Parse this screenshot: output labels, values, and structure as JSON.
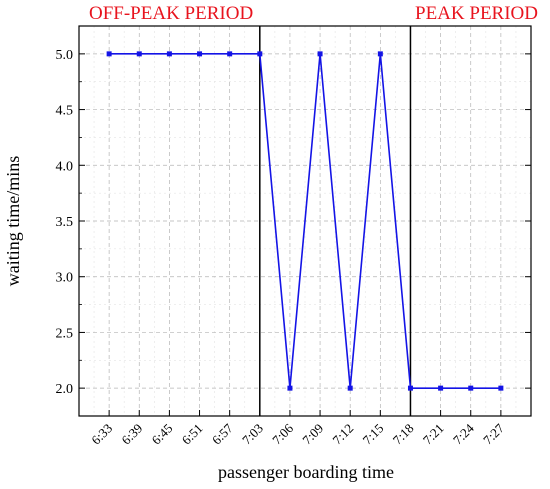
{
  "annotations": {
    "off_peak": "OFF-PEAK PERIOD",
    "peak": "PEAK PERIOD",
    "color": "#e8141e"
  },
  "chart_data": {
    "type": "line",
    "xlabel": "passenger boarding time",
    "ylabel": "waiting time/mins",
    "categories": [
      "6:33",
      "6:39",
      "6:45",
      "6:51",
      "6:57",
      "7:03",
      "7:06",
      "7:09",
      "7:12",
      "7:15",
      "7:18",
      "7:21",
      "7:24",
      "7:27"
    ],
    "series": [
      {
        "values": [
          5.0,
          5.0,
          5.0,
          5.0,
          5.0,
          5.0,
          2.0,
          5.0,
          2.0,
          5.0,
          2.0,
          2.0,
          2.0,
          2.0
        ],
        "color": "#1414e6"
      }
    ],
    "yticks": [
      "2.0",
      "2.5",
      "3.0",
      "3.5",
      "4.0",
      "4.5",
      "5.0"
    ],
    "ylim": [
      1.75,
      5.25
    ],
    "grid": true,
    "period_dividers": [
      "7:03",
      "7:18"
    ],
    "legend": "none"
  }
}
